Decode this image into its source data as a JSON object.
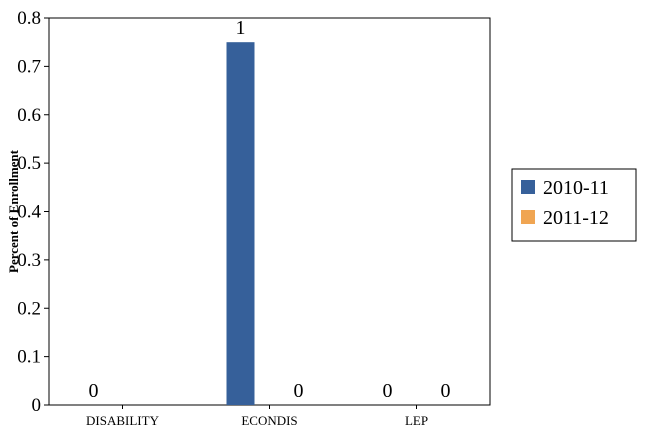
{
  "chart_data": {
    "type": "bar",
    "title": "",
    "xlabel": "",
    "ylabel": "Percent of Enrollment",
    "ylim": [
      0,
      0.8
    ],
    "yticks": [
      0,
      0.1,
      0.2,
      0.3,
      0.4,
      0.5,
      0.6,
      0.7,
      0.8
    ],
    "ytick_labels": [
      "0",
      "0.1",
      "0.2",
      "0.3",
      "0.4",
      "0.5",
      "0.6",
      "0.7",
      "0.8"
    ],
    "categories": [
      "DISABILITY",
      "ECONDIS",
      "LEP"
    ],
    "series": [
      {
        "name": "2010-11",
        "color": "#36609a",
        "values": [
          0,
          0.75,
          0
        ],
        "labels": [
          "0",
          "1",
          "0"
        ]
      },
      {
        "name": "2011-12",
        "color": "#f0a552",
        "values": [
          0,
          0,
          0
        ],
        "labels": [
          "",
          "0",
          "0"
        ]
      }
    ],
    "grid": false,
    "legend": "right"
  }
}
